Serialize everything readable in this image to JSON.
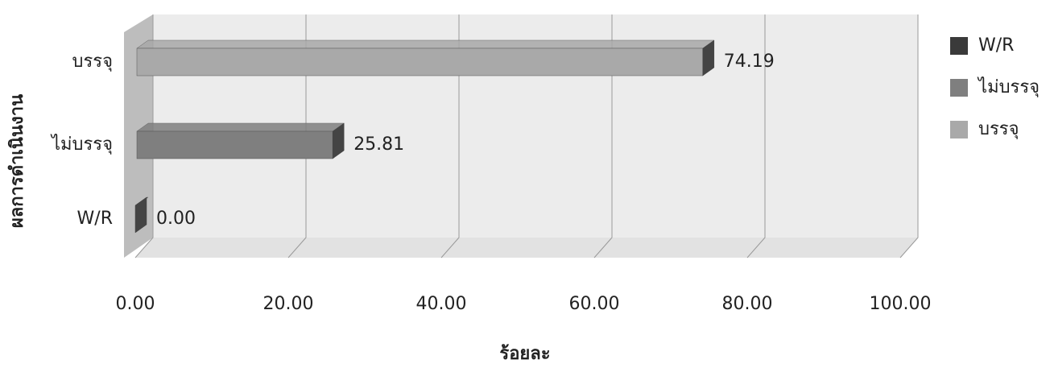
{
  "chart_data": {
    "type": "bar",
    "orientation": "horizontal",
    "x_label": "ร้อยละ",
    "y_label": "ผลการดำเนินงาน",
    "categories": [
      "W/R",
      "ไม่บรรจุ",
      "บรรจุ"
    ],
    "values": [
      0,
      25.81,
      74.19
    ],
    "value_labels": [
      "0.00",
      "25.81",
      "74.19"
    ],
    "colors": [
      "#3a3a3a",
      "#7f7f7f",
      "#a9a9a9"
    ],
    "xlim": [
      0,
      100
    ],
    "xticks": [
      {
        "value": 0,
        "label": "0.00"
      },
      {
        "value": 20,
        "label": "20.00"
      },
      {
        "value": 40,
        "label": "40.00"
      },
      {
        "value": 60,
        "label": "60.00"
      },
      {
        "value": 80,
        "label": "80.00"
      },
      {
        "value": 100,
        "label": "100.00"
      }
    ],
    "grid": true,
    "legend": "right"
  }
}
